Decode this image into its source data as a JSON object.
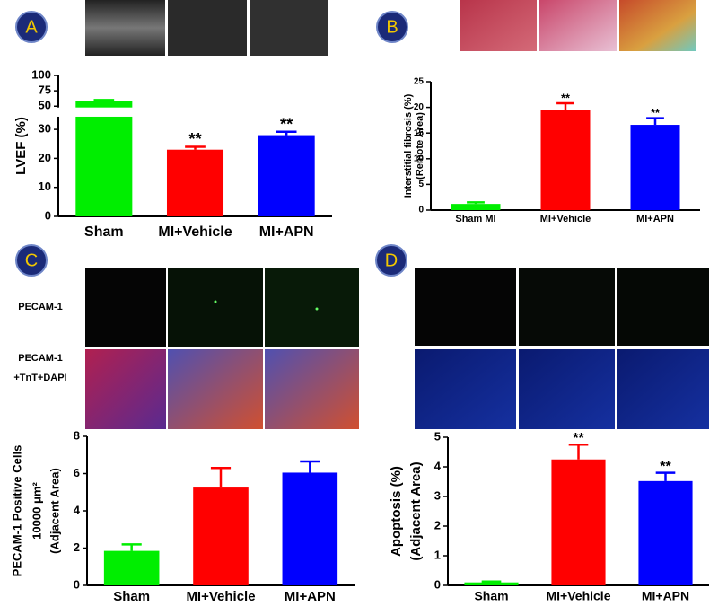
{
  "chart_data": [
    {
      "type": "bar",
      "panel": "A",
      "ylabel": [
        "LVEF (%)"
      ],
      "categories": [
        "Sham",
        "MI+Vehicle",
        "MI+APN"
      ],
      "values": [
        58,
        23,
        28
      ],
      "errors": [
        2,
        1,
        1.2
      ],
      "significance": [
        null,
        "**",
        "**"
      ],
      "colors": [
        "#00ee00",
        "#ff0000",
        "#0000ff"
      ],
      "ylim": [
        0,
        100
      ],
      "axis_break": [
        35,
        45
      ],
      "yticks": [
        0,
        10,
        20,
        30,
        50,
        75,
        100
      ]
    },
    {
      "type": "bar",
      "panel": "B",
      "ylabel": [
        "Interstitial fibrosis  (%)",
        "(Remote Area)"
      ],
      "categories": [
        "Sham MI",
        "MI+Vehicle",
        "MI+APN"
      ],
      "values": [
        1.2,
        19.5,
        16.6
      ],
      "errors": [
        0.3,
        1.3,
        1.3
      ],
      "significance": [
        null,
        "**",
        "**"
      ],
      "colors": [
        "#00ee00",
        "#ff0000",
        "#0000ff"
      ],
      "ylim": [
        0,
        25
      ],
      "yticks": [
        0,
        5,
        10,
        15,
        20,
        25
      ]
    },
    {
      "type": "bar",
      "panel": "C",
      "image_labels": [
        [
          "PECAM-1"
        ],
        [
          "PECAM-1",
          "+TnT+DAPI"
        ]
      ],
      "ylabel": [
        "PECAM-1 Positive Cells",
        "10000 μm²",
        "(Adjacent Area)"
      ],
      "categories": [
        "Sham",
        "MI+Vehicle",
        "MI+APN"
      ],
      "values": [
        1.85,
        5.25,
        6.05
      ],
      "errors": [
        0.35,
        1.05,
        0.6
      ],
      "colors": [
        "#00ee00",
        "#ff0000",
        "#0000ff"
      ],
      "ylim": [
        0,
        8
      ],
      "yticks": [
        0,
        2,
        4,
        6,
        8
      ]
    },
    {
      "type": "bar",
      "panel": "D",
      "ylabel": [
        "Apoptosis (%)",
        "(Adjacent Area)"
      ],
      "categories": [
        "Sham",
        "MI+Vehicle",
        "MI+APN"
      ],
      "values": [
        0.1,
        4.25,
        3.52
      ],
      "errors": [
        0.03,
        0.5,
        0.28
      ],
      "significance": [
        null,
        "**",
        "**"
      ],
      "colors": [
        "#00ee00",
        "#ff0000",
        "#0000ff"
      ],
      "ylim": [
        0,
        5
      ],
      "yticks": [
        0,
        1,
        2,
        3,
        4,
        5
      ]
    }
  ]
}
